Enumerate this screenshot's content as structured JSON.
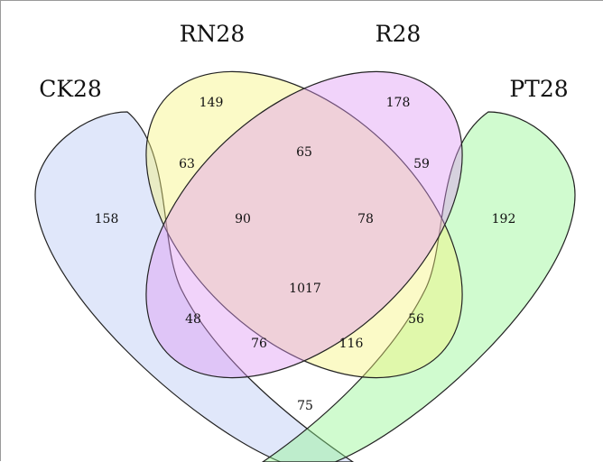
{
  "venn": {
    "sets": [
      {
        "key": "CK28",
        "label": "CK28",
        "color": "#b6c6f2"
      },
      {
        "key": "RN28",
        "label": "RN28",
        "color": "#f6f47a"
      },
      {
        "key": "R28",
        "label": "R28",
        "color": "#dd97f3"
      },
      {
        "key": "PT28",
        "label": "PT28",
        "color": "#8ef58c"
      }
    ],
    "regions": {
      "CK28_only": "158",
      "RN28_only": "149",
      "R28_only": "178",
      "PT28_only": "192",
      "CK28_RN28": "63",
      "RN28_R28": "65",
      "R28_PT28": "59",
      "CK28_RN28_R28": "90",
      "RN28_R28_PT28": "78",
      "all_four": "1017",
      "CK28_R28": "48",
      "CK28_R28_PT28": "76",
      "CK28_RN28_PT28": "116",
      "RN28_PT28": "56",
      "CK28_PT28": "75"
    }
  }
}
